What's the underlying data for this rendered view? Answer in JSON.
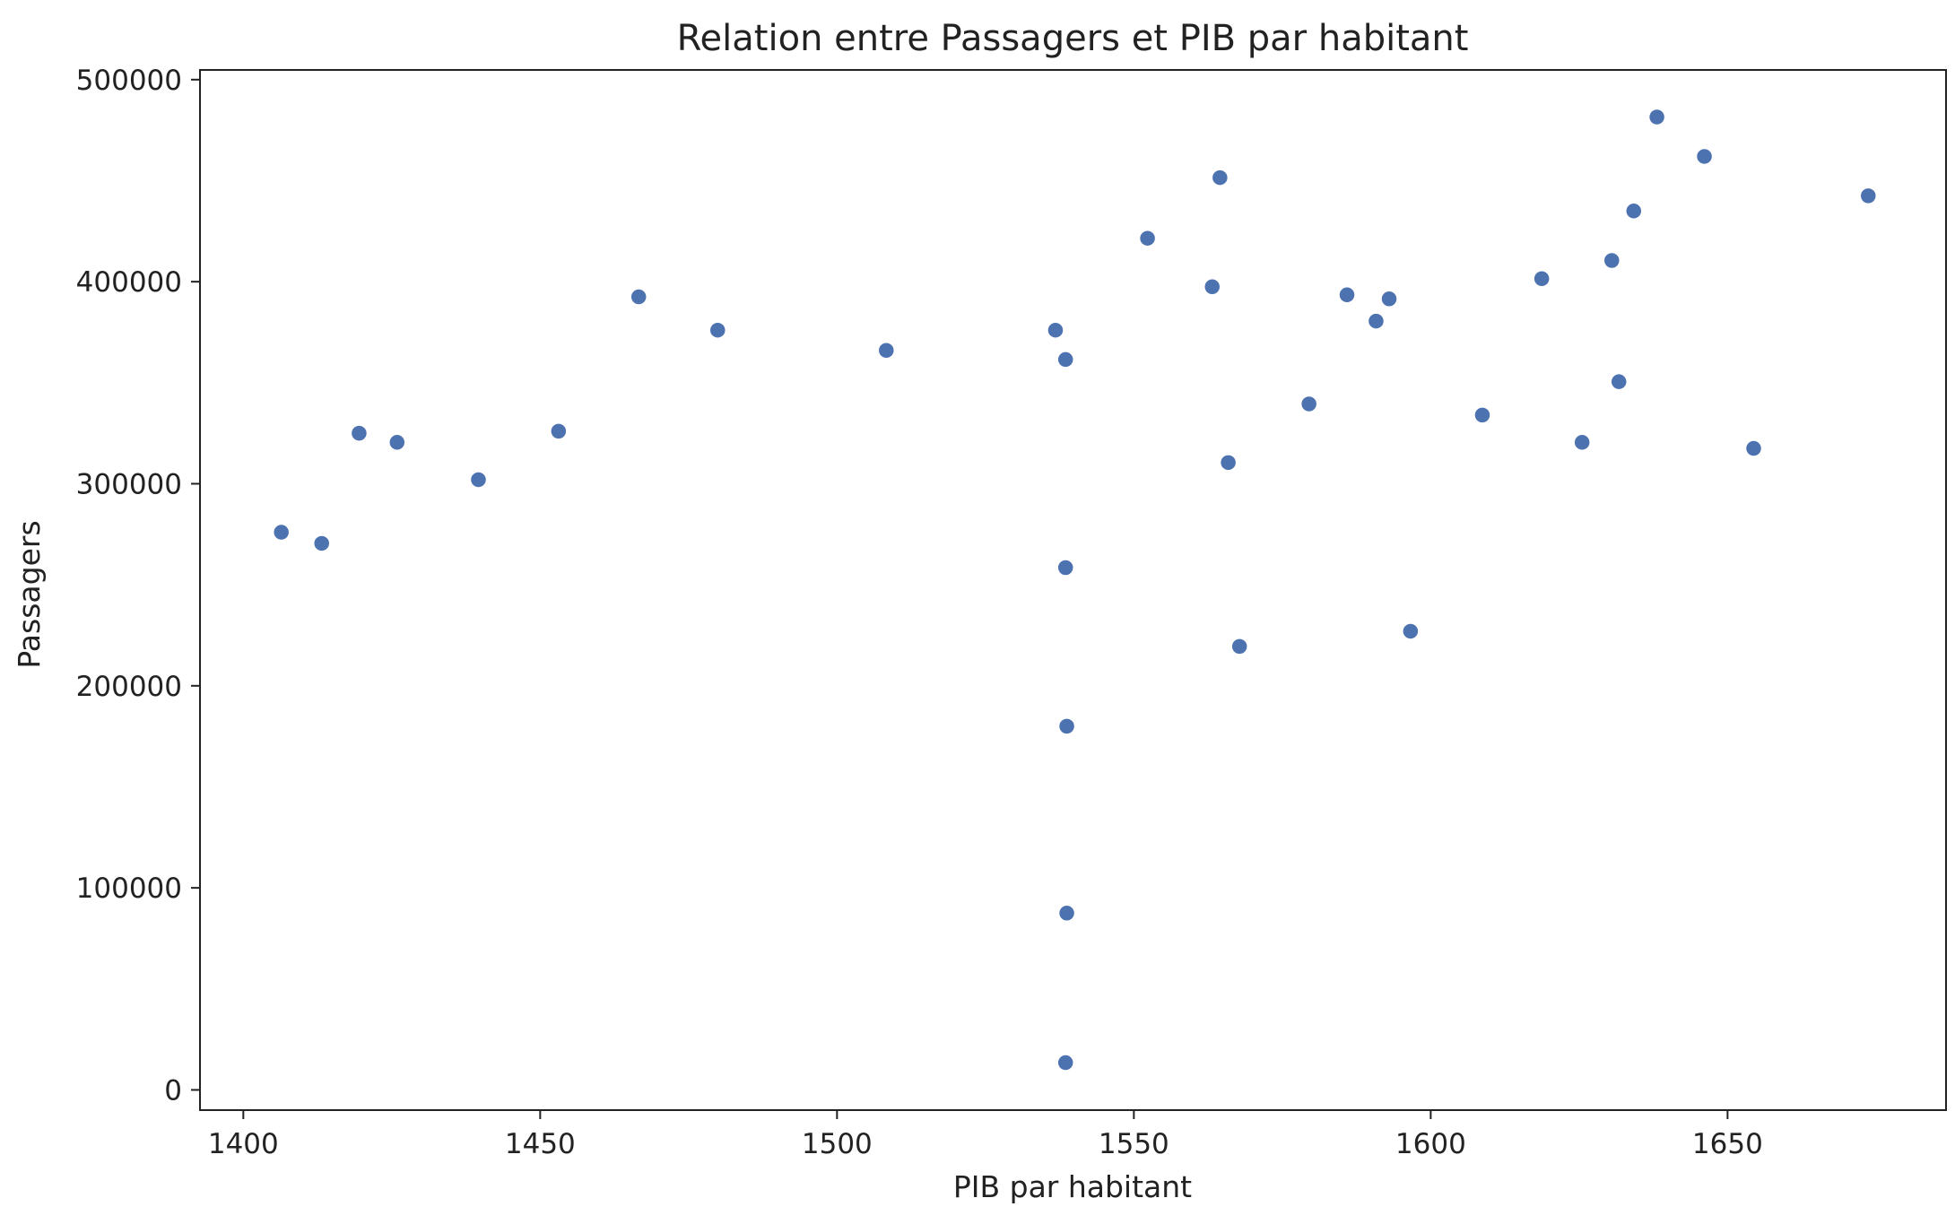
{
  "chart_data": {
    "type": "scatter",
    "title": "Relation entre Passagers et PIB par habitant",
    "xlabel": "PIB par habitant",
    "ylabel": "Passagers",
    "xlim": [
      1392.7,
      1686.8
    ],
    "ylim": [
      -10000,
      504800
    ],
    "xticks": [
      1400,
      1450,
      1500,
      1550,
      1600,
      1650
    ],
    "yticks": [
      0,
      100000,
      200000,
      300000,
      400000,
      500000
    ],
    "grid": false,
    "legend": "none",
    "marker_color": "#4c72b0",
    "points": [
      {
        "x": 1406.4,
        "y": 276000
      },
      {
        "x": 1413.2,
        "y": 270500
      },
      {
        "x": 1419.5,
        "y": 325000
      },
      {
        "x": 1425.9,
        "y": 320500
      },
      {
        "x": 1439.6,
        "y": 302000
      },
      {
        "x": 1453.1,
        "y": 326000
      },
      {
        "x": 1466.6,
        "y": 392500
      },
      {
        "x": 1479.9,
        "y": 376000
      },
      {
        "x": 1508.3,
        "y": 366000
      },
      {
        "x": 1536.8,
        "y": 376000
      },
      {
        "x": 1538.5,
        "y": 361500
      },
      {
        "x": 1538.5,
        "y": 258500
      },
      {
        "x": 1538.7,
        "y": 180000
      },
      {
        "x": 1538.7,
        "y": 87500
      },
      {
        "x": 1538.5,
        "y": 13500
      },
      {
        "x": 1552.3,
        "y": 421500
      },
      {
        "x": 1563.2,
        "y": 397500
      },
      {
        "x": 1564.5,
        "y": 451500
      },
      {
        "x": 1565.9,
        "y": 310500
      },
      {
        "x": 1567.8,
        "y": 219500
      },
      {
        "x": 1579.5,
        "y": 339500
      },
      {
        "x": 1585.9,
        "y": 393500
      },
      {
        "x": 1590.8,
        "y": 380500
      },
      {
        "x": 1593.0,
        "y": 391500
      },
      {
        "x": 1596.6,
        "y": 227000
      },
      {
        "x": 1608.7,
        "y": 334000
      },
      {
        "x": 1618.7,
        "y": 401500
      },
      {
        "x": 1625.5,
        "y": 320500
      },
      {
        "x": 1630.5,
        "y": 410500
      },
      {
        "x": 1631.7,
        "y": 350500
      },
      {
        "x": 1634.2,
        "y": 435000
      },
      {
        "x": 1638.1,
        "y": 481500
      },
      {
        "x": 1646.1,
        "y": 462000
      },
      {
        "x": 1654.4,
        "y": 317500
      },
      {
        "x": 1673.7,
        "y": 442500
      }
    ]
  }
}
